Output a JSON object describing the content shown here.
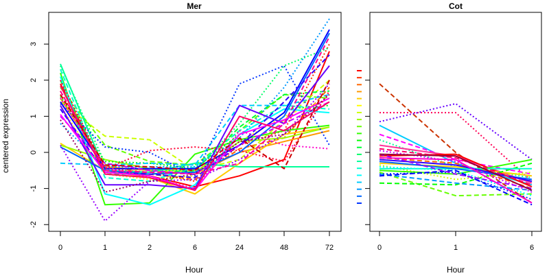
{
  "figure": {
    "ylabel": "centered expression"
  },
  "chart_data": [
    {
      "type": "line",
      "title": "Mer",
      "xlabel": "Hour",
      "ylabel": "centered expression",
      "categories": [
        "0",
        "1",
        "2",
        "6",
        "24",
        "48",
        "72"
      ],
      "ylim": [
        -2.1,
        3.8
      ],
      "yticks": [
        -2,
        -1,
        0,
        1,
        2,
        3
      ],
      "grid": false,
      "series": [
        {
          "color": "#ff0000",
          "dash": "solid",
          "values": [
            1.9,
            -0.5,
            -0.65,
            -0.95,
            -0.65,
            -0.2,
            2.8
          ]
        },
        {
          "color": "#ff3300",
          "dash": "dotted",
          "values": [
            1.7,
            -0.45,
            -0.55,
            -0.8,
            0.2,
            0.6,
            3.0
          ]
        },
        {
          "color": "#ff6600",
          "dash": "dashed",
          "values": [
            1.6,
            -0.35,
            -0.6,
            -0.75,
            0.1,
            0.4,
            1.8
          ]
        },
        {
          "color": "#ff9900",
          "dash": "solid",
          "values": [
            1.5,
            -0.4,
            -0.5,
            -0.6,
            0.0,
            0.3,
            0.6
          ]
        },
        {
          "color": "#ffcc00",
          "dash": "solid",
          "values": [
            0.25,
            -0.5,
            -0.7,
            -1.15,
            -0.3,
            0.5,
            0.7
          ]
        },
        {
          "color": "#ffff00",
          "dash": "dotted",
          "values": [
            1.3,
            -0.6,
            -0.75,
            -0.65,
            0.3,
            1.0,
            1.5
          ]
        },
        {
          "color": "#ccff00",
          "dash": "dashed",
          "values": [
            1.4,
            0.45,
            0.35,
            -0.5,
            -0.2,
            0.9,
            2.0
          ]
        },
        {
          "color": "#99ff00",
          "dash": "solid",
          "values": [
            0.2,
            -0.2,
            -0.45,
            -0.55,
            0.3,
            0.4,
            0.7
          ]
        },
        {
          "color": "#66ff00",
          "dash": "dashed",
          "values": [
            1.8,
            0.2,
            -0.25,
            -0.35,
            0.6,
            1.6,
            1.5
          ]
        },
        {
          "color": "#33ff00",
          "dash": "solid",
          "values": [
            2.2,
            -1.45,
            -1.4,
            -0.05,
            0.35,
            0.6,
            0.75
          ]
        },
        {
          "color": "#00ff00",
          "dash": "dotted",
          "values": [
            1.55,
            -0.25,
            -0.3,
            -0.45,
            0.5,
            1.2,
            1.3
          ]
        },
        {
          "color": "#00ff33",
          "dash": "dashed",
          "values": [
            2.0,
            -0.6,
            -0.6,
            -0.5,
            0.7,
            1.6,
            1.7
          ]
        },
        {
          "color": "#00ff66",
          "dash": "dotted",
          "values": [
            2.4,
            -0.3,
            -0.5,
            -0.5,
            0.8,
            2.4,
            2.9
          ]
        },
        {
          "color": "#00ff99",
          "dash": "solid",
          "values": [
            2.45,
            -0.5,
            -0.55,
            -0.3,
            -0.4,
            -0.4,
            -0.4
          ]
        },
        {
          "color": "#00ffcc",
          "dash": "dashed",
          "values": [
            2.3,
            -0.7,
            -0.8,
            -0.4,
            0.6,
            1.3,
            1.2
          ]
        },
        {
          "color": "#00ffff",
          "dash": "solid",
          "values": [
            2.1,
            -1.15,
            -1.45,
            -0.9,
            0.5,
            1.2,
            1.1
          ]
        },
        {
          "color": "#00ccff",
          "dash": "dashed",
          "values": [
            -0.3,
            -0.35,
            -0.3,
            -0.35,
            1.3,
            1.3,
            1.6
          ]
        },
        {
          "color": "#0099ff",
          "dash": "dotted",
          "values": [
            0.8,
            -0.4,
            -0.4,
            -0.4,
            0.4,
            1.8,
            3.7
          ]
        },
        {
          "color": "#0066ff",
          "dash": "solid",
          "values": [
            0.15,
            -0.5,
            -0.6,
            -0.55,
            0.0,
            1.0,
            3.3
          ]
        },
        {
          "color": "#0033ff",
          "dash": "dotted",
          "values": [
            1.35,
            0.15,
            0.0,
            -0.65,
            1.9,
            2.4,
            0.2
          ]
        },
        {
          "color": "#0000ff",
          "dash": "solid",
          "values": [
            1.4,
            -0.45,
            -0.45,
            -0.45,
            0.2,
            1.1,
            3.4
          ]
        },
        {
          "color": "#3300ff",
          "dash": "dashed",
          "values": [
            1.2,
            -0.55,
            -0.6,
            -0.7,
            0.2,
            1.4,
            2.7
          ]
        },
        {
          "color": "#6600ff",
          "dash": "solid",
          "values": [
            1.3,
            -0.9,
            -0.9,
            -1.0,
            1.3,
            0.8,
            2.4
          ]
        },
        {
          "color": "#9900ff",
          "dash": "dotted",
          "values": [
            0.2,
            -1.9,
            -0.8,
            -0.75,
            -0.2,
            0.5,
            1.9
          ]
        },
        {
          "color": "#cc00ff",
          "dash": "dashed",
          "values": [
            1.0,
            -0.3,
            -0.5,
            -0.6,
            0.2,
            0.8,
            1.4
          ]
        },
        {
          "color": "#ff00ff",
          "dash": "solid",
          "values": [
            1.05,
            -0.55,
            -0.65,
            -1.05,
            0.5,
            0.9,
            1.5
          ]
        },
        {
          "color": "#ff00cc",
          "dash": "dotted",
          "values": [
            1.5,
            -0.4,
            -0.7,
            -1.0,
            0.6,
            0.2,
            0.1
          ]
        },
        {
          "color": "#ff0099",
          "dash": "dashed",
          "values": [
            1.7,
            -0.5,
            -0.55,
            -0.6,
            -0.3,
            0.8,
            3.2
          ]
        },
        {
          "color": "#ff0066",
          "dash": "solid",
          "values": [
            1.85,
            -0.6,
            -0.7,
            -1.05,
            1.0,
            0.6,
            1.4
          ]
        },
        {
          "color": "#ff0033",
          "dash": "dotted",
          "values": [
            2.0,
            -0.45,
            0.05,
            0.15,
            0.05,
            -0.25,
            1.7
          ]
        },
        {
          "color": "#cc0000",
          "dash": "dashed",
          "values": [
            1.6,
            -0.35,
            -0.4,
            -0.5,
            0.4,
            -0.45,
            2.0
          ]
        },
        {
          "color": "#990066",
          "dash": "dotted",
          "values": [
            0.9,
            -1.1,
            -0.8,
            -0.6,
            0.3,
            0.5,
            1.6
          ]
        }
      ]
    },
    {
      "type": "line",
      "title": "Cot",
      "xlabel": "Hour",
      "categories": [
        "0",
        "1",
        "6"
      ],
      "ylim": [
        -2.1,
        3.8
      ],
      "grid": false,
      "series": [
        {
          "color": "#cc3300",
          "dash": "dashed",
          "values": [
            1.9,
            0.0,
            -1.4
          ]
        },
        {
          "color": "#ff0055",
          "dash": "dotted",
          "values": [
            1.1,
            1.1,
            -0.8
          ]
        },
        {
          "color": "#6600ff",
          "dash": "dotted",
          "values": [
            0.85,
            1.35,
            -0.2
          ]
        },
        {
          "color": "#00ccff",
          "dash": "solid",
          "values": [
            0.75,
            -0.3,
            -0.9
          ]
        },
        {
          "color": "#ff00ff",
          "dash": "dashed",
          "values": [
            0.5,
            -0.2,
            -0.6
          ]
        },
        {
          "color": "#00ff99",
          "dash": "dotted",
          "values": [
            0.35,
            -0.4,
            -0.7
          ]
        },
        {
          "color": "#ff3399",
          "dash": "solid",
          "values": [
            0.2,
            -0.1,
            -0.85
          ]
        },
        {
          "color": "#ff0000",
          "dash": "solid",
          "values": [
            -0.1,
            -0.05,
            -0.95
          ]
        },
        {
          "color": "#ff6600",
          "dash": "dashed",
          "values": [
            -0.15,
            -0.3,
            -1.0
          ]
        },
        {
          "color": "#ffcc00",
          "dash": "solid",
          "values": [
            -0.3,
            -0.4,
            -0.65
          ]
        },
        {
          "color": "#ccff00",
          "dash": "dotted",
          "values": [
            -0.35,
            -0.75,
            -0.55
          ]
        },
        {
          "color": "#66ff00",
          "dash": "dashed",
          "values": [
            -0.55,
            -1.2,
            -1.15
          ]
        },
        {
          "color": "#33ff00",
          "dash": "solid",
          "values": [
            -0.5,
            -0.6,
            -0.2
          ]
        },
        {
          "color": "#00ff00",
          "dash": "dashed",
          "values": [
            -0.85,
            -0.9,
            -0.3
          ]
        },
        {
          "color": "#00ffcc",
          "dash": "solid",
          "values": [
            -0.45,
            -0.45,
            -0.45
          ]
        },
        {
          "color": "#00ffff",
          "dash": "dotted",
          "values": [
            -0.4,
            -0.5,
            -1.2
          ]
        },
        {
          "color": "#0099ff",
          "dash": "dashed",
          "values": [
            -0.6,
            -0.85,
            -1.05
          ]
        },
        {
          "color": "#0066ff",
          "dash": "solid",
          "values": [
            -0.25,
            -0.45,
            -0.75
          ]
        },
        {
          "color": "#0033ff",
          "dash": "dotted",
          "values": [
            -0.6,
            -0.55,
            -1.3
          ]
        },
        {
          "color": "#0000ff",
          "dash": "dashed",
          "values": [
            -0.65,
            -0.5,
            -1.45
          ]
        },
        {
          "color": "#3300ff",
          "dash": "solid",
          "values": [
            -0.2,
            -0.35,
            -0.8
          ]
        },
        {
          "color": "#9900ff",
          "dash": "dashed",
          "values": [
            -0.05,
            -0.6,
            -1.0
          ]
        },
        {
          "color": "#cc00ff",
          "dash": "dotted",
          "values": [
            0.05,
            -0.25,
            -1.1
          ]
        },
        {
          "color": "#ff00cc",
          "dash": "solid",
          "values": [
            -0.15,
            -0.2,
            -1.4
          ]
        },
        {
          "color": "#ff0066",
          "dash": "dashed",
          "values": [
            0.1,
            -0.15,
            -0.9
          ]
        },
        {
          "color": "#990033",
          "dash": "solid",
          "values": [
            -0.05,
            -0.1,
            -1.05
          ]
        }
      ]
    }
  ],
  "stripe": {
    "colors": [
      "#ff0000",
      "#ff3300",
      "#ff6600",
      "#ff9900",
      "#ffcc00",
      "#ffff00",
      "#ccff00",
      "#99ff00",
      "#66ff00",
      "#33ff00",
      "#00ff00",
      "#00ff33",
      "#00ff66",
      "#00ff99",
      "#00ffcc",
      "#00ffff",
      "#00ccff",
      "#0099ff",
      "#0066ff",
      "#0033ff"
    ]
  }
}
